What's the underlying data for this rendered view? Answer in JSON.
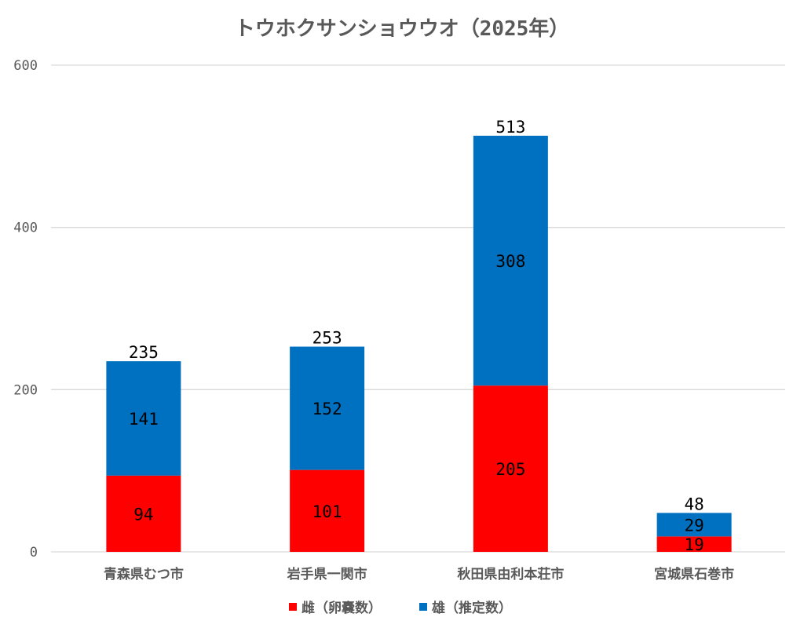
{
  "chart_data": {
    "type": "bar",
    "stacked": true,
    "title": "トウホクサンショウウオ（2025年）",
    "xlabel": "",
    "ylabel": "",
    "ylim": [
      0,
      600
    ],
    "yticks": [
      0,
      200,
      400,
      600
    ],
    "grid": true,
    "legend_position": "bottom",
    "categories": [
      "青森県むつ市",
      "岩手県一関市",
      "秋田県由利本荘市",
      "宮城県石巻市"
    ],
    "series": [
      {
        "name": "雌（卵嚢数）",
        "color": "#ff0000",
        "values": [
          94,
          101,
          205,
          19
        ]
      },
      {
        "name": "雄（推定数）",
        "color": "#0070c0",
        "values": [
          141,
          152,
          308,
          29
        ]
      }
    ],
    "totals": [
      235,
      253,
      513,
      48
    ]
  }
}
